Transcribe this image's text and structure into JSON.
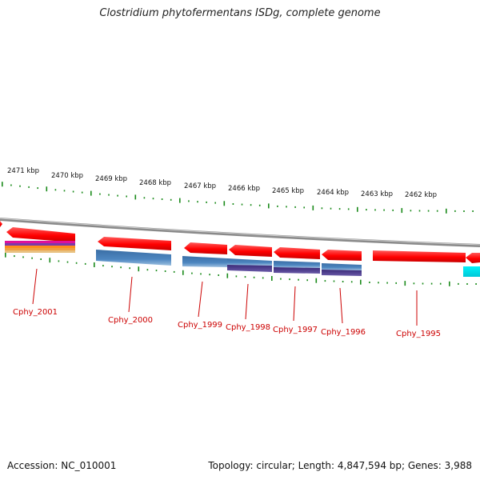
{
  "title": "Clostridium phytofermentans ISDg, complete genome",
  "footer": {
    "accession": "Accession: NC_010001",
    "summary": "Topology: circular; Length: 4,847,594 bp; Genes: 3,988"
  },
  "scale": {
    "labels": [
      "2471 kbp",
      "2470 kbp",
      "2469 kbp",
      "2468 kbp",
      "2467 kbp",
      "2466 kbp",
      "2465 kbp",
      "2464 kbp",
      "2463 kbp",
      "2462 kbp"
    ]
  },
  "genes": [
    {
      "label": "Cphy_2001"
    },
    {
      "label": "Cphy_2000"
    },
    {
      "label": "Cphy_1999"
    },
    {
      "label": "Cphy_1998"
    },
    {
      "label": "Cphy_1997"
    },
    {
      "label": "Cphy_1996"
    },
    {
      "label": "Cphy_1995"
    }
  ],
  "colors": {
    "cds": "#ff0000",
    "annotation_blue": "#4a7fb5",
    "annotation_purple": "#4b3a8c",
    "annotation_cyan": "#00e5ee",
    "tick": "#1a8a1a",
    "backbone": "#888888",
    "label": "#cc0000"
  }
}
